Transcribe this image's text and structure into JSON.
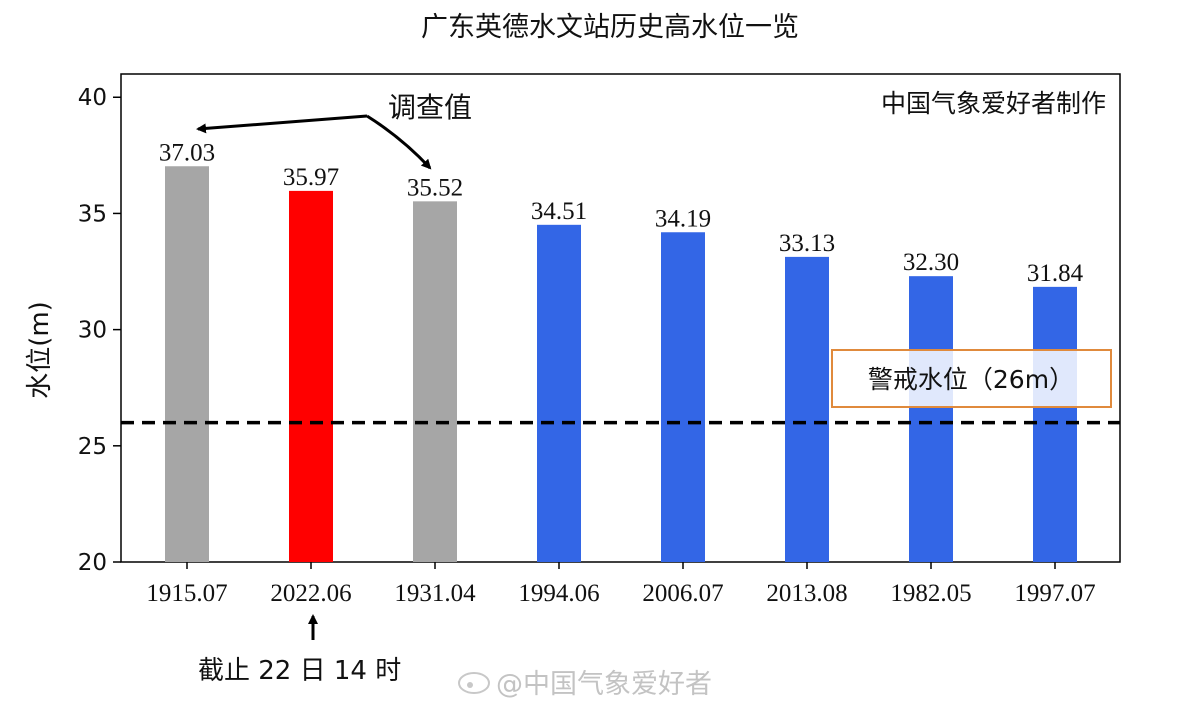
{
  "chart_data": {
    "type": "bar",
    "title": "广东英德水文站历史高水位一览",
    "xlabel": "",
    "ylabel": "水位(m)",
    "ylim": [
      20,
      41
    ],
    "yticks": [
      "20",
      "25",
      "30",
      "35",
      "40"
    ],
    "categories": [
      "1915.07",
      "2022.06",
      "1931.04",
      "1994.06",
      "2006.07",
      "2013.08",
      "1982.05",
      "1997.07"
    ],
    "values": [
      37.03,
      35.97,
      35.52,
      34.51,
      34.19,
      33.13,
      32.3,
      31.84
    ],
    "value_labels": [
      "37.03",
      "35.97",
      "35.52",
      "34.51",
      "34.19",
      "33.13",
      "32.30",
      "31.84"
    ],
    "bar_colors": [
      "#a6a6a6",
      "#ff0000",
      "#a6a6a6",
      "#3366e6",
      "#3366e6",
      "#3366e6",
      "#3366e6",
      "#3366e6"
    ],
    "grid": false,
    "reference_line": {
      "value": 26,
      "label": "警戒水位（26m）",
      "style": "dashed",
      "color": "#000000",
      "box_color": "#e08a3c"
    },
    "annotations": {
      "survey": "调查值",
      "credit": "中国气象爱好者制作",
      "cutoff": "截止 22 日 14 时"
    },
    "watermark": "@中国气象爱好者"
  }
}
